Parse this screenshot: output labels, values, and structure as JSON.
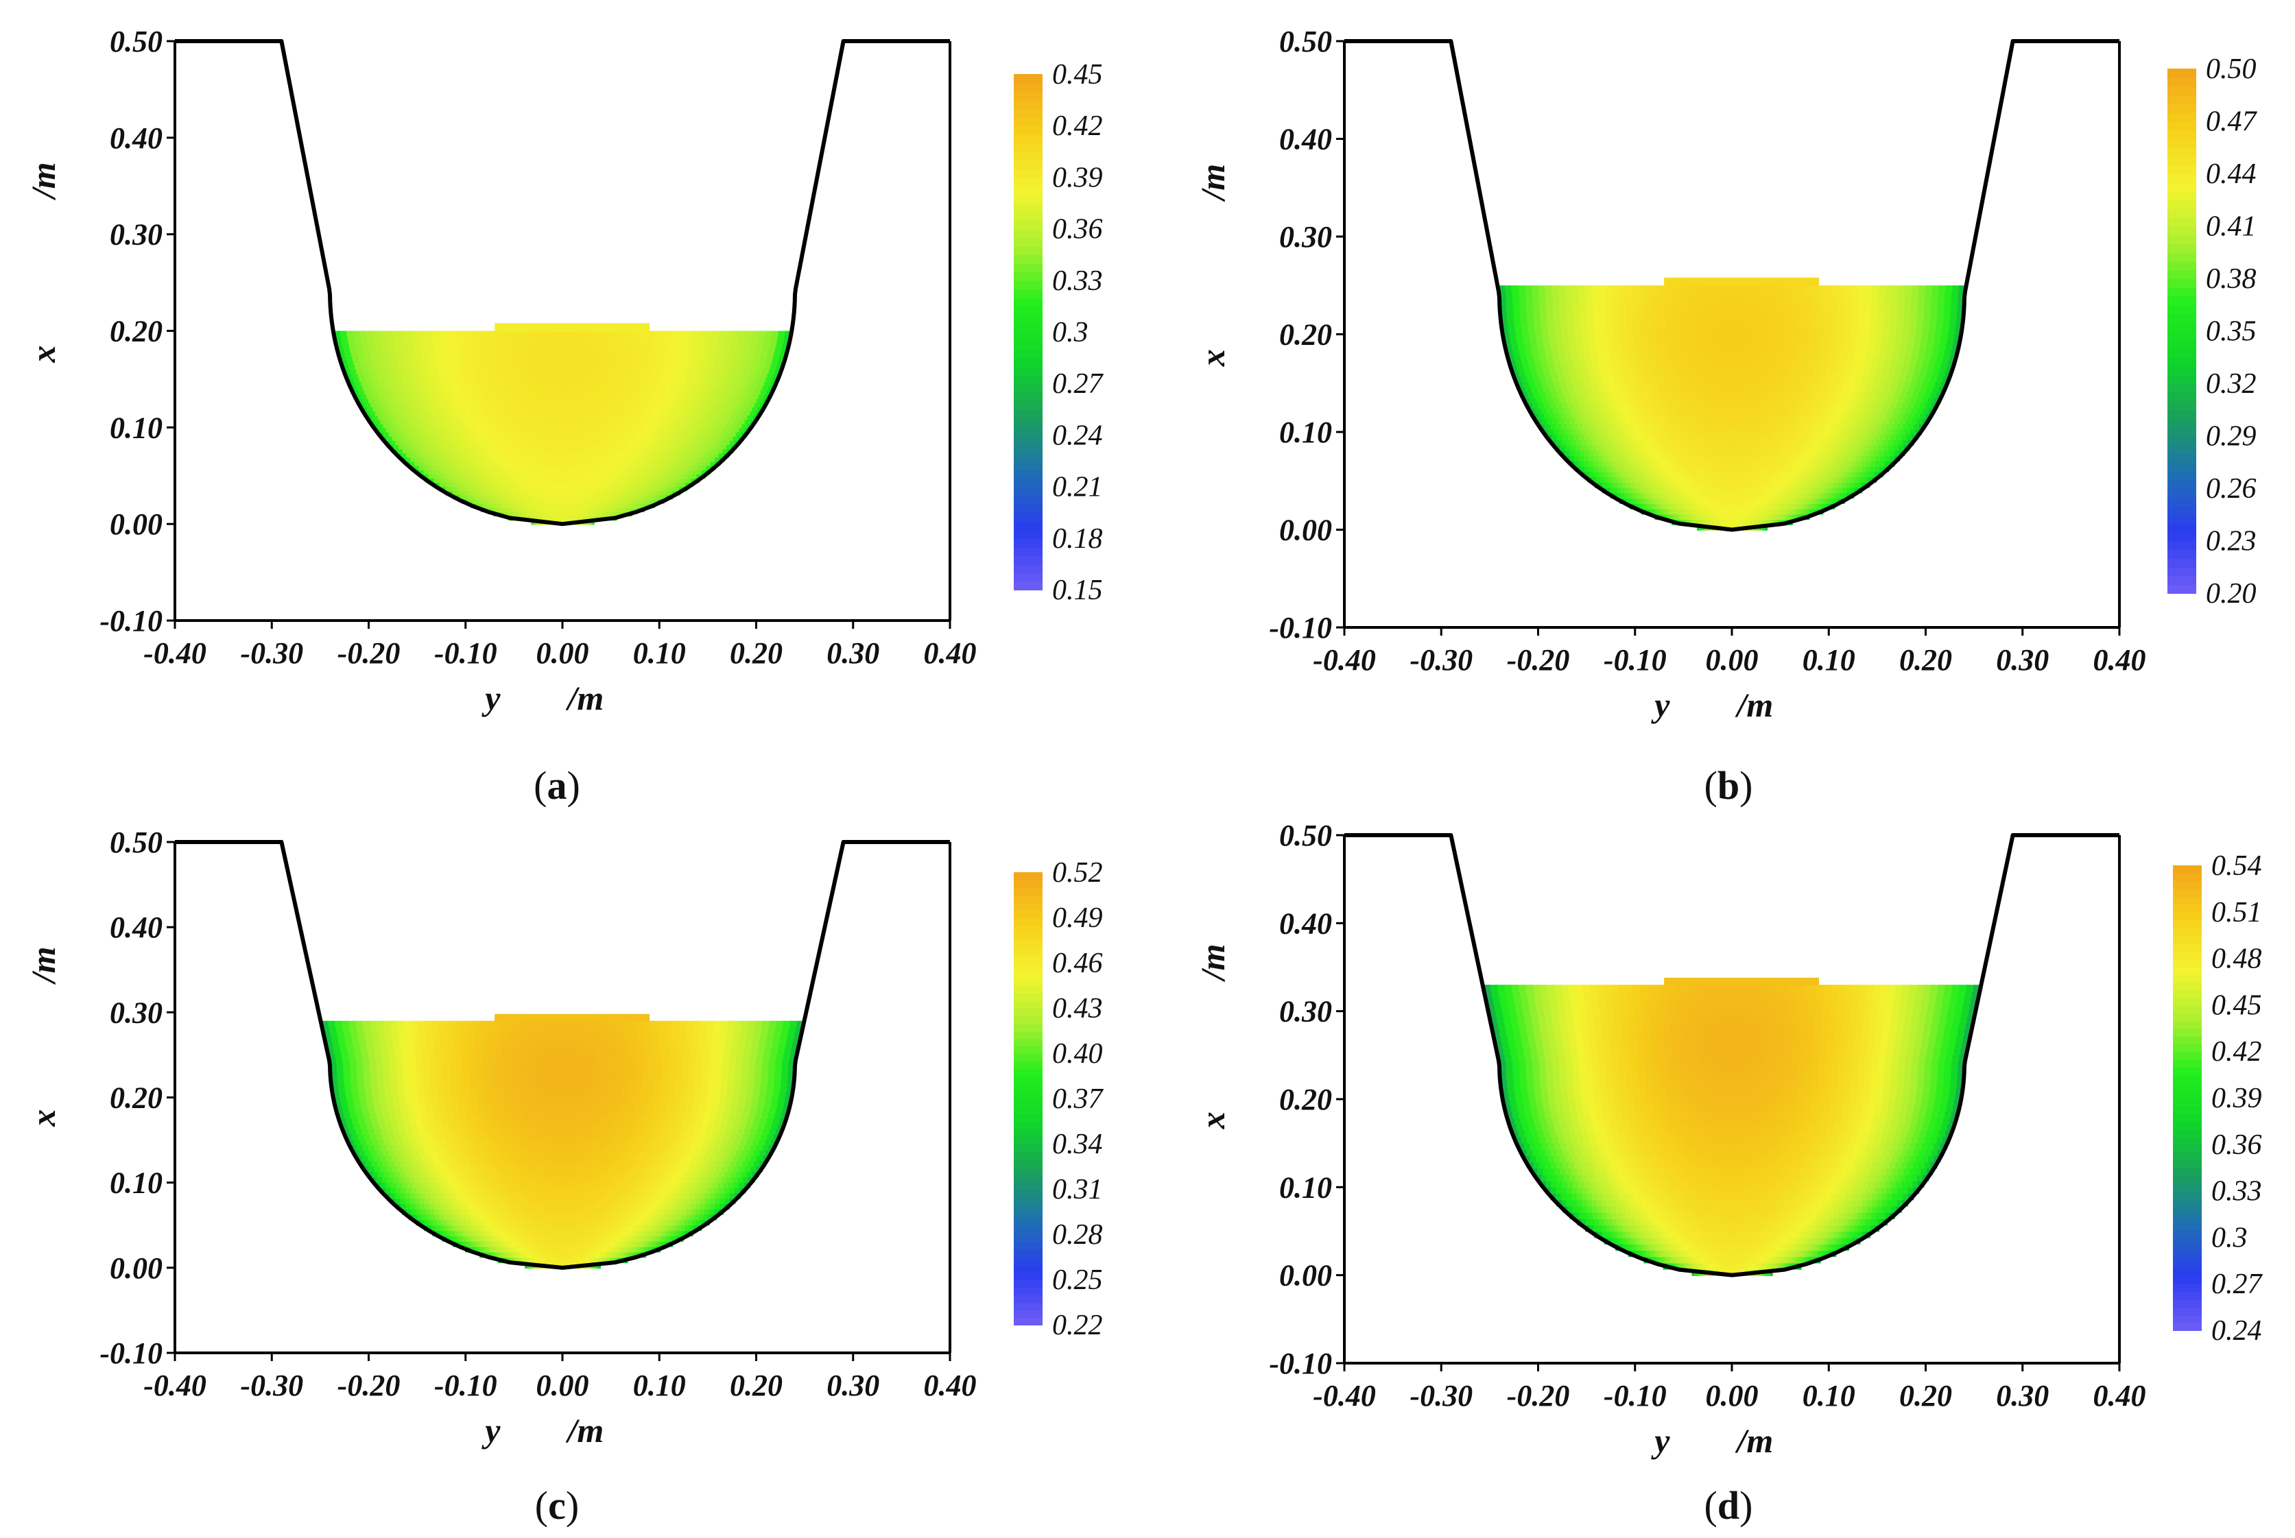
{
  "figure": {
    "panel_labels": [
      {
        "open": "(",
        "letter": "a",
        "close": ")"
      },
      {
        "open": "(",
        "letter": "b",
        "close": ")"
      },
      {
        "open": "(",
        "letter": "c",
        "close": ")"
      },
      {
        "open": "(",
        "letter": "d",
        "close": ")"
      }
    ]
  },
  "colors": {
    "background": "#ffffff",
    "outline": "#000000",
    "colormap": [
      "#6a5cf5",
      "#2a3cf0",
      "#1f6fb4",
      "#1aa05a",
      "#10d62a",
      "#22ee1c",
      "#a8f030",
      "#f4f430",
      "#f6d21a",
      "#f2a81a"
    ]
  },
  "chart_data": [
    {
      "type": "heatmap",
      "panel": "a",
      "xlabel": "y",
      "xlabel_unit": "/m",
      "ylabel": "x",
      "ylabel_unit": "/m",
      "xlim": [
        -0.4,
        0.4
      ],
      "ylim": [
        -0.1,
        0.5
      ],
      "xticks": [
        "-0.40",
        "-0.30",
        "-0.20",
        "-0.10",
        "0.00",
        "0.10",
        "0.20",
        "0.30",
        "0.40"
      ],
      "yticks": [
        "0.50",
        "0.40",
        "0.30",
        "0.20",
        "0.10",
        "0.00",
        "-0.10"
      ],
      "channel_outline": {
        "top_y": 0.5,
        "bank_x_at_top": 0.29,
        "bed_radius": 0.24,
        "bed_center_y": 0.24
      },
      "water_depth": 0.2,
      "colorbar": {
        "min": 0.15,
        "max": 0.45,
        "ticks": [
          "0.45",
          "0.42",
          "0.39",
          "0.36",
          "0.33",
          "0.3",
          "0.27",
          "0.24",
          "0.21",
          "0.18",
          "0.15"
        ]
      },
      "field": {
        "max_value": 0.4,
        "bed_value": 0.33,
        "core_depth_fraction": 0.85
      }
    },
    {
      "type": "heatmap",
      "panel": "b",
      "xlabel": "y",
      "xlabel_unit": "/m",
      "ylabel": "x",
      "ylabel_unit": "/m",
      "xlim": [
        -0.4,
        0.4
      ],
      "ylim": [
        -0.1,
        0.5
      ],
      "xticks": [
        "-0.40",
        "-0.30",
        "-0.20",
        "-0.10",
        "0.00",
        "0.10",
        "0.20",
        "0.30",
        "0.40"
      ],
      "yticks": [
        "0.50",
        "0.40",
        "0.30",
        "0.20",
        "0.10",
        "0.00",
        "-0.10"
      ],
      "channel_outline": {
        "top_y": 0.5,
        "bank_x_at_top": 0.29,
        "bed_radius": 0.24,
        "bed_center_y": 0.24
      },
      "water_depth": 0.25,
      "colorbar": {
        "min": 0.2,
        "max": 0.5,
        "ticks": [
          "0.50",
          "0.47",
          "0.44",
          "0.41",
          "0.38",
          "0.35",
          "0.32",
          "0.29",
          "0.26",
          "0.23",
          "0.20"
        ]
      },
      "field": {
        "max_value": 0.47,
        "bed_value": 0.35,
        "core_depth_fraction": 0.8
      }
    },
    {
      "type": "heatmap",
      "panel": "c",
      "xlabel": "y",
      "xlabel_unit": "/m",
      "ylabel": "x",
      "ylabel_unit": "/m",
      "xlim": [
        -0.4,
        0.4
      ],
      "ylim": [
        -0.1,
        0.5
      ],
      "xticks": [
        "-0.40",
        "-0.30",
        "-0.20",
        "-0.10",
        "0.00",
        "0.10",
        "0.20",
        "0.30",
        "0.40"
      ],
      "yticks": [
        "0.50",
        "0.40",
        "0.30",
        "0.20",
        "0.10",
        "0.00",
        "-0.10"
      ],
      "channel_outline": {
        "top_y": 0.5,
        "bank_x_at_top": 0.29,
        "bed_radius": 0.24,
        "bed_center_y": 0.24
      },
      "water_depth": 0.29,
      "colorbar": {
        "min": 0.22,
        "max": 0.52,
        "ticks": [
          "0.52",
          "0.49",
          "0.46",
          "0.43",
          "0.40",
          "0.37",
          "0.34",
          "0.31",
          "0.28",
          "0.25",
          "0.22"
        ]
      },
      "field": {
        "max_value": 0.51,
        "bed_value": 0.37,
        "core_depth_fraction": 0.8
      }
    },
    {
      "type": "heatmap",
      "panel": "d",
      "xlabel": "y",
      "xlabel_unit": "/m",
      "ylabel": "x",
      "ylabel_unit": "/m",
      "xlim": [
        -0.4,
        0.4
      ],
      "ylim": [
        -0.1,
        0.5
      ],
      "xticks": [
        "-0.40",
        "-0.30",
        "-0.20",
        "-0.10",
        "0.00",
        "0.10",
        "0.20",
        "0.30",
        "0.40"
      ],
      "yticks": [
        "0.50",
        "0.40",
        "0.30",
        "0.20",
        "0.10",
        "0.00",
        "-0.10"
      ],
      "channel_outline": {
        "top_y": 0.5,
        "bank_x_at_top": 0.29,
        "bed_radius": 0.24,
        "bed_center_y": 0.24
      },
      "water_depth": 0.33,
      "colorbar": {
        "min": 0.24,
        "max": 0.54,
        "ticks": [
          "0.54",
          "0.51",
          "0.48",
          "0.45",
          "0.42",
          "0.39",
          "0.36",
          "0.33",
          "0.3",
          "0.27",
          "0.24"
        ]
      },
      "field": {
        "max_value": 0.53,
        "bed_value": 0.38,
        "core_depth_fraction": 0.8
      }
    }
  ]
}
